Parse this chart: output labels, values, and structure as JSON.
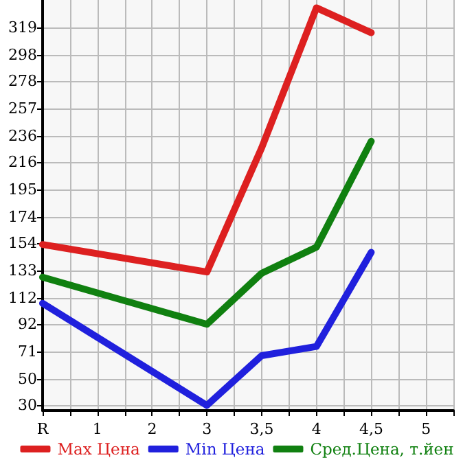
{
  "chart_data": {
    "type": "line",
    "categories": [
      "R",
      "1",
      "2",
      "3",
      "3,5",
      "4",
      "4,5",
      "5"
    ],
    "series": [
      {
        "name": "Max Цена",
        "color": "#dd2020",
        "values": [
          153,
          null,
          null,
          132,
          227,
          334,
          315,
          null
        ]
      },
      {
        "name": "Min Цена",
        "color": "#2020dd",
        "values": [
          108,
          null,
          null,
          30,
          68,
          75,
          147,
          null
        ]
      },
      {
        "name": "Сред.Цена, т.йен",
        "color": "#108010",
        "values": [
          128,
          null,
          null,
          92,
          131,
          151,
          232,
          null
        ]
      }
    ],
    "ylim": [
      26,
      340
    ],
    "yticks": [
      30,
      50,
      71,
      92,
      112,
      133,
      154,
      174,
      195,
      216,
      236,
      257,
      278,
      298,
      319
    ],
    "grid": true,
    "legend": "bottom",
    "marker": "none",
    "line_style": "solid"
  }
}
